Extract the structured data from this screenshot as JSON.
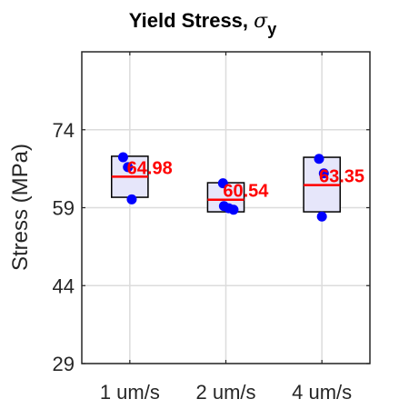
{
  "chart_data": {
    "type": "box",
    "title": "Yield Stress, ",
    "title_symbol": "σ",
    "title_subscript": "y",
    "ylabel": "Stress (MPa)",
    "xlabel": "",
    "ylim": [
      29,
      89
    ],
    "yticks": [
      29,
      44,
      59,
      74
    ],
    "ytick_labels": [
      "29",
      "44",
      "59",
      "74"
    ],
    "grid": true,
    "categories": [
      "1 um/s",
      "2 um/s",
      "4 um/s"
    ],
    "boxes": [
      {
        "q1": 61.0,
        "q3": 68.9,
        "mean": 64.98,
        "mean_label": "64.98",
        "points": [
          {
            "x": 0.93,
            "y": 68.7
          },
          {
            "x": 0.98,
            "y": 66.8
          },
          {
            "x": 1.02,
            "y": 60.6
          }
        ]
      },
      {
        "q1": 58.2,
        "q3": 63.8,
        "mean": 60.54,
        "mean_label": "60.54",
        "points": [
          {
            "x": 1.97,
            "y": 63.7
          },
          {
            "x": 1.98,
            "y": 59.3
          },
          {
            "x": 2.03,
            "y": 58.9
          },
          {
            "x": 2.08,
            "y": 58.6
          }
        ]
      },
      {
        "q1": 58.2,
        "q3": 68.7,
        "mean": 63.35,
        "mean_label": "63.35",
        "points": [
          {
            "x": 2.97,
            "y": 68.4
          },
          {
            "x": 3.02,
            "y": 65.6
          },
          {
            "x": 3.0,
            "y": 57.3
          }
        ]
      }
    ],
    "colors": {
      "box_fill": "#e6e6fa",
      "box_edge": "#000000",
      "mean_line": "#ff0000",
      "points": "#0000ff",
      "mean_text": "#ff0000",
      "grid": "#dcdcdc",
      "axis": "#262626"
    }
  }
}
